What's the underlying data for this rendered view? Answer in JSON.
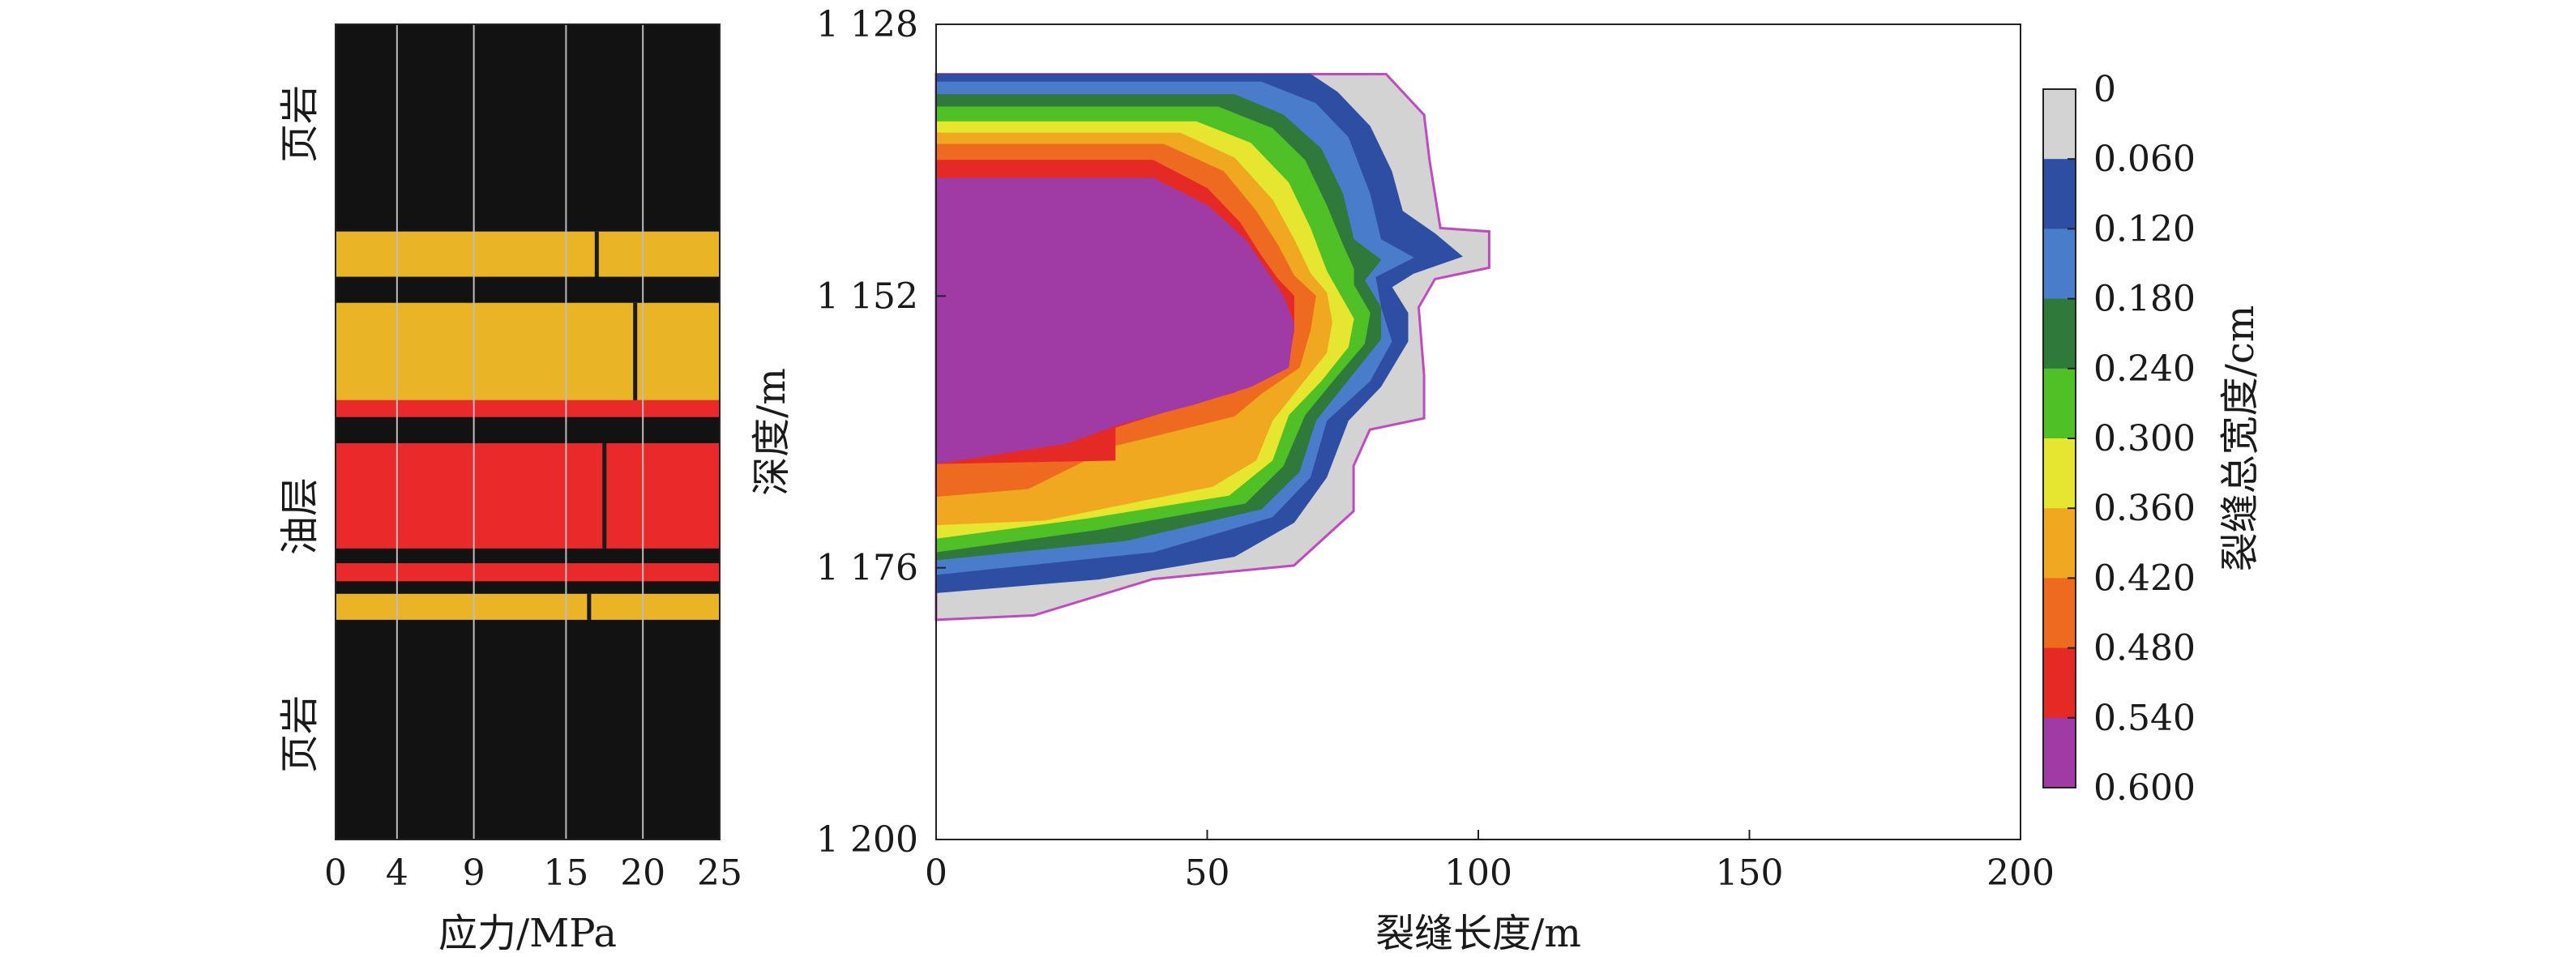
{
  "chart_data": [
    {
      "type": "area",
      "xlabel": "应力/MPa",
      "xticks": [
        "0",
        "4",
        "9",
        "15",
        "20",
        "25"
      ],
      "xlim": [
        0,
        25
      ],
      "depth_range": [
        1128,
        1200
      ],
      "layer_labels": {
        "top_shale": "页岩",
        "oil_layer": "油层",
        "bottom_shale": "页岩"
      },
      "colors": {
        "shale": "#121212",
        "stress_high": "#e9b526",
        "stress_low": "#ea2a2a",
        "grid": "#bdbdbd"
      },
      "bands": [
        {
          "top": 1128,
          "bottom": 1146.3,
          "color": "shale"
        },
        {
          "top": 1146.3,
          "bottom": 1150.3,
          "color": "stress_high",
          "stress": [
            17,
            25
          ]
        },
        {
          "top": 1150.3,
          "bottom": 1152.6,
          "color": "shale"
        },
        {
          "top": 1152.6,
          "bottom": 1161.2,
          "color": "stress_high",
          "stress": [
            19.5,
            25
          ]
        },
        {
          "top": 1161.2,
          "bottom": 1162.7,
          "color": "stress_low"
        },
        {
          "top": 1162.7,
          "bottom": 1165.0,
          "color": "shale"
        },
        {
          "top": 1165.0,
          "bottom": 1174.3,
          "color": "stress_low",
          "stress": [
            17.5,
            25
          ]
        },
        {
          "top": 1174.3,
          "bottom": 1175.6,
          "color": "shale"
        },
        {
          "top": 1175.6,
          "bottom": 1177.2,
          "color": "stress_low"
        },
        {
          "top": 1177.2,
          "bottom": 1178.3,
          "color": "shale"
        },
        {
          "top": 1178.3,
          "bottom": 1180.6,
          "color": "stress_high",
          "stress": [
            16.5,
            25
          ]
        },
        {
          "top": 1180.6,
          "bottom": 1200,
          "color": "shale"
        }
      ]
    },
    {
      "type": "heatmap",
      "xlabel": "裂缝长度/m",
      "ylabel": "深度/m",
      "xlim": [
        0,
        200
      ],
      "ylim": [
        1128,
        1200
      ],
      "xticks": [
        "0",
        "50",
        "100",
        "150",
        "200"
      ],
      "yticks": [
        "1 128",
        "1 152",
        "1 176",
        "1 200"
      ],
      "ytick_values": [
        1128,
        1152,
        1176,
        1200
      ],
      "colorbar": {
        "label": "裂缝总宽度/cm",
        "levels": [
          "0",
          "0.060",
          "0.120",
          "0.180",
          "0.240",
          "0.300",
          "0.360",
          "0.420",
          "0.480",
          "0.540",
          "0.600"
        ],
        "colors": [
          "#d3d3d3",
          "#2d4ea3",
          "#4a7ccc",
          "#2f7a3a",
          "#4fc026",
          "#e6e630",
          "#efa820",
          "#ee6a20",
          "#e52a26",
          "#a03ba6"
        ]
      },
      "contours": [
        {
          "level": "0",
          "color": "#d3d3d3",
          "outline": "#c04ac0",
          "points": [
            [
              0,
              1132.4
            ],
            [
              50,
              1132.4
            ],
            [
              83,
              1132.4
            ],
            [
              90,
              1136
            ],
            [
              91,
              1140
            ],
            [
              93,
              1146
            ],
            [
              102,
              1146.3
            ],
            [
              102,
              1149.5
            ],
            [
              92,
              1150.5
            ],
            [
              89,
              1153
            ],
            [
              90,
              1159
            ],
            [
              90,
              1162.8
            ],
            [
              80,
              1163.8
            ],
            [
              77,
              1167
            ],
            [
              77,
              1171
            ],
            [
              66,
              1175.8
            ],
            [
              40,
              1177
            ],
            [
              18,
              1180.2
            ],
            [
              0,
              1180.6
            ]
          ]
        },
        {
          "level": "0.060",
          "color": "#2d4ea3",
          "points": [
            [
              0,
              1132.4
            ],
            [
              69,
              1132.4
            ],
            [
              74,
              1134
            ],
            [
              80,
              1137
            ],
            [
              84,
              1141
            ],
            [
              86,
              1144.5
            ],
            [
              92,
              1146.5
            ],
            [
              97,
              1148.5
            ],
            [
              88,
              1150
            ],
            [
              84,
              1151.2
            ],
            [
              87,
              1153.5
            ],
            [
              87,
              1156
            ],
            [
              82,
              1160
            ],
            [
              76,
              1163
            ],
            [
              72,
              1168
            ],
            [
              66,
              1172
            ],
            [
              55,
              1175
            ],
            [
              30,
              1177
            ],
            [
              0,
              1178.2
            ]
          ]
        },
        {
          "level": "0.120",
          "color": "#4a7ccc",
          "points": [
            [
              0,
              1133.1
            ],
            [
              60,
              1133.1
            ],
            [
              70,
              1135
            ],
            [
              76,
              1138
            ],
            [
              80,
              1143
            ],
            [
              82,
              1147
            ],
            [
              88,
              1148.6
            ],
            [
              81,
              1150.3
            ],
            [
              82,
              1153
            ],
            [
              84,
              1156
            ],
            [
              80,
              1159.5
            ],
            [
              72,
              1163
            ],
            [
              69,
              1168
            ],
            [
              62,
              1171.5
            ],
            [
              40,
              1174.6
            ],
            [
              0,
              1176.6
            ]
          ]
        },
        {
          "level": "0.180",
          "color": "#2f7a3a",
          "points": [
            [
              0,
              1134.2
            ],
            [
              55,
              1134.2
            ],
            [
              64,
              1136
            ],
            [
              71,
              1139
            ],
            [
              75,
              1143
            ],
            [
              77,
              1147
            ],
            [
              82,
              1148.8
            ],
            [
              79,
              1150.6
            ],
            [
              82,
              1153
            ],
            [
              82,
              1155.8
            ],
            [
              77,
              1158.8
            ],
            [
              70,
              1163
            ],
            [
              67,
              1167.5
            ],
            [
              60,
              1170.8
            ],
            [
              35,
              1173.6
            ],
            [
              0,
              1175.3
            ]
          ]
        },
        {
          "level": "0.240",
          "color": "#4fc026",
          "points": [
            [
              0,
              1135.3
            ],
            [
              52,
              1135.3
            ],
            [
              62,
              1137.2
            ],
            [
              68,
              1140
            ],
            [
              72,
              1144
            ],
            [
              75,
              1147.5
            ],
            [
              77,
              1149.6
            ],
            [
              77,
              1151
            ],
            [
              80,
              1153.5
            ],
            [
              79,
              1156.2
            ],
            [
              74,
              1159
            ],
            [
              68,
              1162.5
            ],
            [
              64,
              1167
            ],
            [
              57,
              1170.3
            ],
            [
              30,
              1172.6
            ],
            [
              0,
              1174.6
            ]
          ]
        },
        {
          "level": "0.300",
          "color": "#e6e630",
          "points": [
            [
              0,
              1136.6
            ],
            [
              48,
              1136.6
            ],
            [
              58,
              1138.5
            ],
            [
              65,
              1142
            ],
            [
              69,
              1146
            ],
            [
              72,
              1149.8
            ],
            [
              74,
              1151.5
            ],
            [
              77,
              1154
            ],
            [
              76,
              1156.5
            ],
            [
              71,
              1159.5
            ],
            [
              65,
              1162.5
            ],
            [
              62,
              1166.5
            ],
            [
              54,
              1169.6
            ],
            [
              28,
              1171.6
            ],
            [
              0,
              1173.4
            ]
          ]
        },
        {
          "level": "0.360",
          "color": "#efa820",
          "points": [
            [
              0,
              1137.6
            ],
            [
              45,
              1137.6
            ],
            [
              55,
              1139.8
            ],
            [
              62,
              1143.5
            ],
            [
              66,
              1147
            ],
            [
              69,
              1150
            ],
            [
              72,
              1151.7
            ],
            [
              73,
              1154.3
            ],
            [
              72,
              1157
            ],
            [
              67,
              1160
            ],
            [
              62,
              1163
            ],
            [
              59,
              1166.5
            ],
            [
              51,
              1168.8
            ],
            [
              20,
              1171.8
            ],
            [
              0,
              1172.2
            ]
          ]
        },
        {
          "level": "0.420",
          "color": "#ee6a20",
          "points": [
            [
              0,
              1138.6
            ],
            [
              42,
              1138.6
            ],
            [
              53,
              1141
            ],
            [
              59,
              1144.5
            ],
            [
              63,
              1147.5
            ],
            [
              66,
              1150.2
            ],
            [
              70,
              1152
            ],
            [
              69,
              1155
            ],
            [
              67,
              1158.3
            ],
            [
              60,
              1160.6
            ],
            [
              55,
              1162.6
            ],
            [
              33,
              1165.2
            ],
            [
              17,
              1169
            ],
            [
              0,
              1169.7
            ]
          ]
        },
        {
          "level": "0.480",
          "color": "#e52a26",
          "points": [
            [
              0,
              1140
            ],
            [
              40,
              1140
            ],
            [
              50,
              1142.5
            ],
            [
              56,
              1145.5
            ],
            [
              60,
              1148.5
            ],
            [
              63,
              1150.5
            ],
            [
              66,
              1152
            ],
            [
              66,
              1155
            ],
            [
              65,
              1157.8
            ],
            [
              55,
              1160.5
            ],
            [
              45,
              1161.8
            ],
            [
              33,
              1163.6
            ],
            [
              33,
              1166.5
            ],
            [
              0,
              1166.8
            ]
          ]
        },
        {
          "level": "0.540",
          "color": "#a03ba6",
          "points": [
            [
              0,
              1141.6
            ],
            [
              40,
              1141.6
            ],
            [
              50,
              1144
            ],
            [
              57,
              1147
            ],
            [
              61,
              1149.8
            ],
            [
              64,
              1152
            ],
            [
              66,
              1154.5
            ],
            [
              65,
              1158.3
            ],
            [
              58,
              1160
            ],
            [
              48,
              1161.5
            ],
            [
              34,
              1163.3
            ],
            [
              24,
              1165
            ],
            [
              0,
              1166.8
            ]
          ]
        }
      ]
    }
  ]
}
